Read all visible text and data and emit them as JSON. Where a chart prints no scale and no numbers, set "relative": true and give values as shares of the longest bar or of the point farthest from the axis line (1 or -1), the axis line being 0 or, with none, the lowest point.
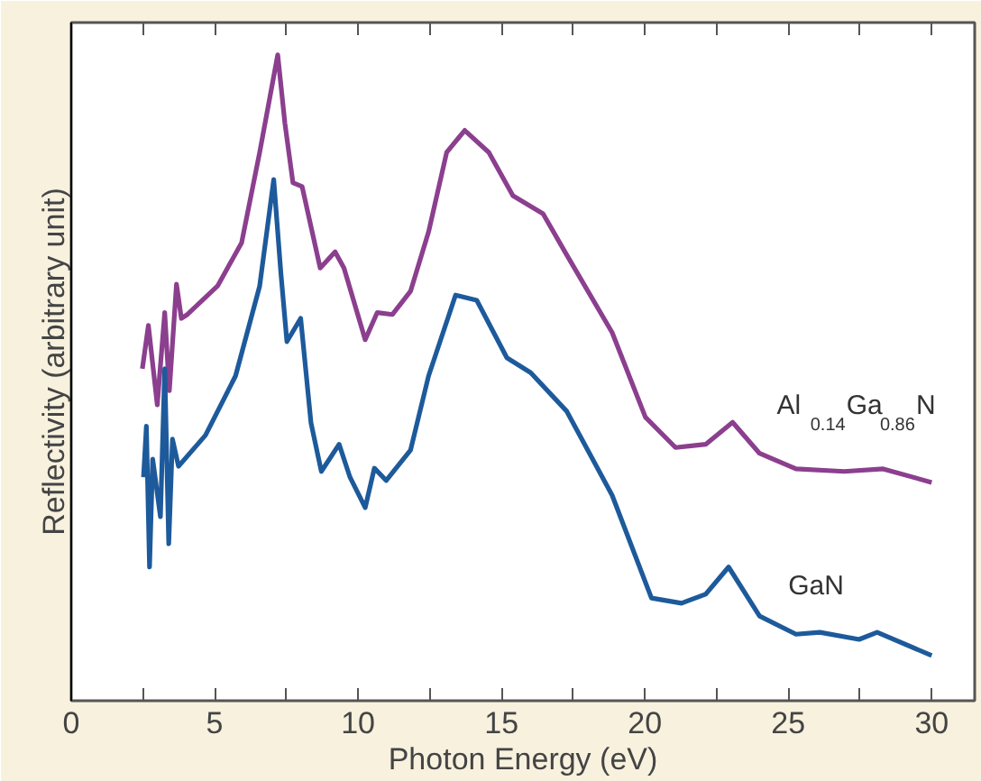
{
  "chart_data": {
    "type": "line",
    "relative": true,
    "xlabel": "Photon Energy (eV)",
    "ylabel": "Reflectivity (arbitrary unit)",
    "xlim": [
      0,
      31.5
    ],
    "xticks": [
      0,
      {
        "value": 2.5,
        "label": null
      },
      5,
      {
        "value": 7.5,
        "label": null
      },
      10,
      {
        "value": 12.5,
        "label": null
      },
      15,
      {
        "value": 17.5,
        "label": null
      },
      20,
      {
        "value": 22.5,
        "label": null
      },
      25,
      {
        "value": 27.5,
        "label": null
      },
      30
    ],
    "grid": false,
    "marker": "none",
    "line_style": "solid",
    "series": [
      {
        "name": "Al$_{0.14}$Ga$_{0.86}$N",
        "color": "#8b3f8e",
        "x": [
          2.48,
          2.69,
          3.0,
          3.26,
          3.42,
          3.67,
          3.84,
          4.05,
          5.1,
          5.94,
          6.57,
          7.2,
          7.45,
          7.73,
          8.05,
          8.68,
          9.2,
          9.51,
          10.25,
          10.67,
          11.2,
          11.83,
          12.46,
          13.09,
          13.72,
          14.56,
          15.4,
          16.45,
          17.28,
          18.86,
          20.02,
          21.07,
          22.12,
          23.06,
          24.0,
          25.27,
          26.95,
          28.31,
          30.0
        ],
        "values": [
          0.514,
          0.581,
          0.458,
          0.601,
          0.48,
          0.645,
          0.592,
          0.598,
          0.642,
          0.709,
          0.849,
          1.0,
          0.894,
          0.802,
          0.796,
          0.67,
          0.695,
          0.67,
          0.559,
          0.601,
          0.598,
          0.634,
          0.726,
          0.849,
          0.883,
          0.849,
          0.782,
          0.754,
          0.69,
          0.57,
          0.439,
          0.392,
          0.397,
          0.431,
          0.383,
          0.359,
          0.355,
          0.359,
          0.338
        ]
      },
      {
        "name": "GaN",
        "color": "#1d5a9b",
        "x": [
          2.52,
          2.62,
          2.73,
          2.84,
          3.11,
          3.26,
          3.4,
          3.53,
          3.74,
          4.68,
          5.73,
          6.57,
          7.06,
          7.31,
          7.52,
          8.0,
          8.36,
          8.72,
          9.34,
          9.72,
          10.25,
          10.57,
          10.98,
          11.83,
          12.46,
          13.4,
          14.14,
          15.19,
          16.02,
          17.28,
          18.86,
          20.23,
          21.28,
          22.12,
          22.92,
          24.0,
          25.27,
          26.1,
          27.47,
          28.1,
          30.0
        ],
        "values": [
          0.346,
          0.425,
          0.207,
          0.374,
          0.285,
          0.514,
          0.243,
          0.405,
          0.363,
          0.411,
          0.503,
          0.642,
          0.807,
          0.662,
          0.556,
          0.592,
          0.43,
          0.355,
          0.397,
          0.346,
          0.299,
          0.36,
          0.341,
          0.388,
          0.503,
          0.628,
          0.62,
          0.531,
          0.508,
          0.448,
          0.318,
          0.159,
          0.151,
          0.165,
          0.207,
          0.131,
          0.103,
          0.106,
          0.095,
          0.106,
          0.07
        ]
      }
    ]
  }
}
